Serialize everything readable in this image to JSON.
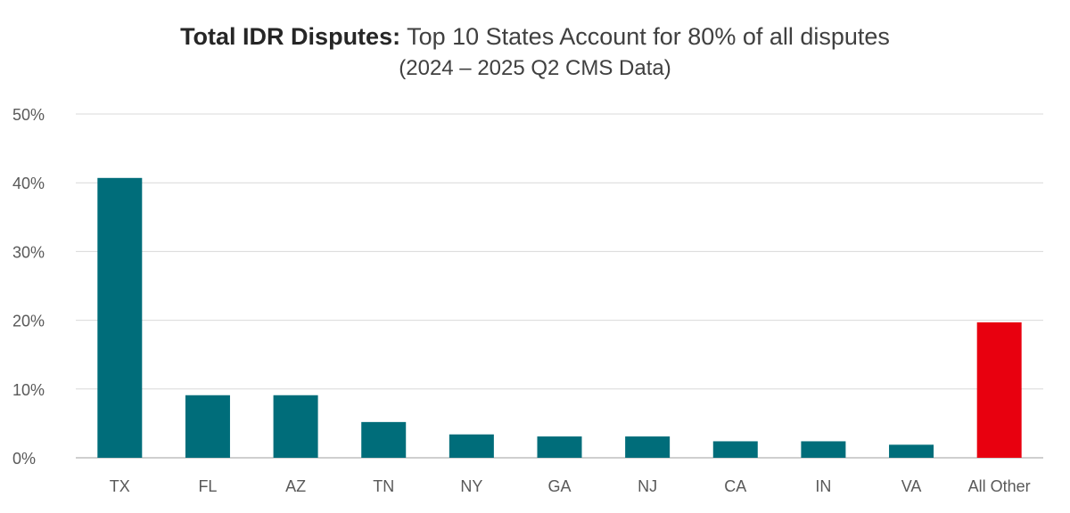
{
  "chart_data": {
    "type": "bar",
    "title_bold": "Total IDR Disputes:",
    "title_rest": " Top 10 States Account for 80% of all disputes",
    "subtitle": "(2024 – 2025 Q2 CMS Data)",
    "xlabel": "",
    "ylabel": "",
    "ylim": [
      0,
      50
    ],
    "yticks": [
      0,
      10,
      20,
      30,
      40,
      50
    ],
    "ytick_labels": [
      "0%",
      "10%",
      "20%",
      "30%",
      "40%",
      "50%"
    ],
    "grid": true,
    "legend": "none",
    "categories": [
      "TX",
      "FL",
      "AZ",
      "TN",
      "NY",
      "GA",
      "NJ",
      "CA",
      "IN",
      "VA",
      "All Other"
    ],
    "values": [
      40.7,
      9.1,
      9.1,
      5.2,
      3.4,
      3.1,
      3.1,
      2.4,
      2.4,
      1.9,
      19.7
    ],
    "colors": {
      "default": "#006d7a",
      "highlight": "#e8000f",
      "highlight_category": "All Other"
    }
  }
}
